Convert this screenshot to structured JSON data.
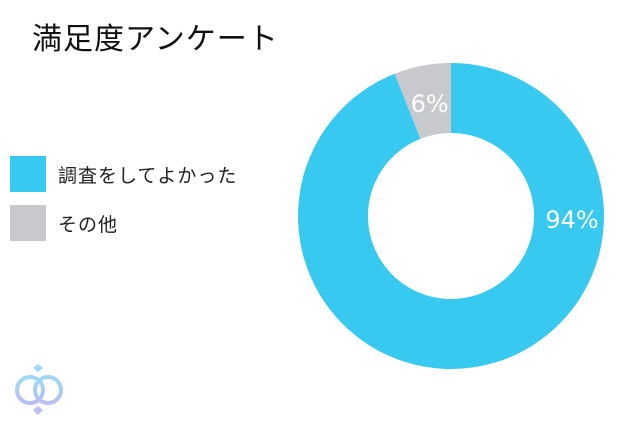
{
  "chart_data": {
    "type": "pie",
    "variant": "donut",
    "title": "満足度アンケート",
    "legend_position": "left",
    "slices": [
      {
        "name": "調査をしてよかった",
        "value": 94,
        "label": "94%",
        "color": "#38C9F0"
      },
      {
        "name": "その他",
        "value": 6,
        "label": "6%",
        "color": "#C8C9CD"
      }
    ]
  },
  "logo": {
    "icon": "interlocked-rings-logo",
    "colors": [
      "#9ED8F5",
      "#B7C0F0"
    ]
  }
}
